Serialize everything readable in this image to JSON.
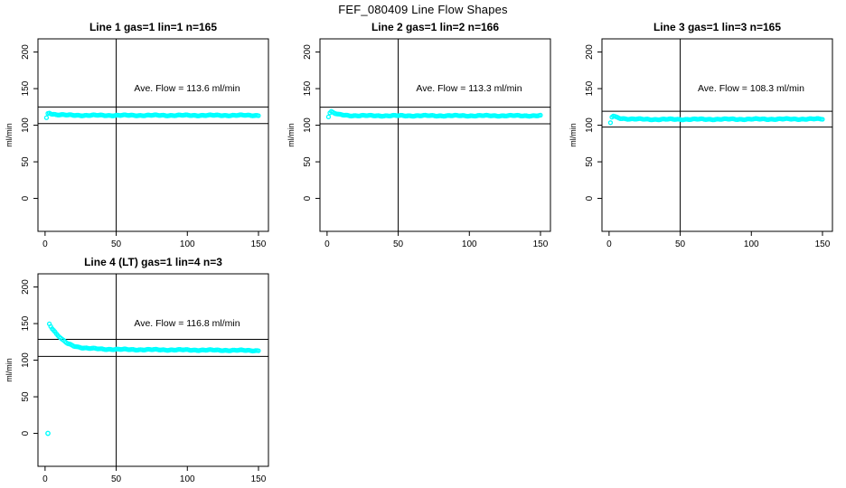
{
  "figure": {
    "title": "FEF_080409  Line Flow Shapes"
  },
  "chart_data": {
    "type": "scatter",
    "title": "FEF_080409  Line Flow Shapes",
    "ylabel": "ml/min",
    "xlabel": "",
    "x_ticks": [
      0,
      50,
      100,
      150
    ],
    "y_ticks": [
      0,
      50,
      100,
      150,
      200
    ],
    "xlim": [
      -5,
      157
    ],
    "ylim": [
      -45,
      218
    ],
    "grid": false,
    "legend": "none",
    "point_color": "#00FFFF",
    "line_color": "#000000",
    "vline_x": 50,
    "plots": [
      {
        "title": "Line 1 gas=1 lin=1 n=165",
        "annotation": "Ave. Flow =  113.6  ml/min",
        "ave_flow": 113.6,
        "n": 165,
        "ref_low": 102.2,
        "ref_high": 125.0,
        "x_start": 1,
        "x_end": 150,
        "anchors": [
          [
            1,
            110
          ],
          [
            2,
            116
          ],
          [
            3,
            117
          ],
          [
            5,
            115.5
          ],
          [
            8,
            114.5
          ],
          [
            15,
            113.8
          ],
          [
            30,
            113.5
          ],
          [
            150,
            113.5
          ]
        ],
        "extra_points": []
      },
      {
        "title": "Line 2 gas=1 lin=2 n=166",
        "annotation": "Ave. Flow =  113.3  ml/min",
        "ave_flow": 113.3,
        "n": 166,
        "ref_low": 102.0,
        "ref_high": 124.6,
        "x_start": 1,
        "x_end": 150,
        "anchors": [
          [
            1,
            112
          ],
          [
            2,
            117
          ],
          [
            3,
            118.5
          ],
          [
            5,
            116.5
          ],
          [
            8,
            114.5
          ],
          [
            15,
            113.3
          ],
          [
            30,
            113
          ],
          [
            150,
            113
          ]
        ],
        "extra_points": []
      },
      {
        "title": "Line 3 gas=1 lin=3 n=165",
        "annotation": "Ave. Flow =  108.3  ml/min",
        "ave_flow": 108.3,
        "n": 165,
        "ref_low": 97.5,
        "ref_high": 119.1,
        "x_start": 1,
        "x_end": 150,
        "anchors": [
          [
            1,
            103
          ],
          [
            2,
            111
          ],
          [
            3,
            112.5
          ],
          [
            5,
            111
          ],
          [
            8,
            109.5
          ],
          [
            15,
            108.5
          ],
          [
            30,
            108
          ],
          [
            150,
            108.5
          ]
        ],
        "extra_points": []
      },
      {
        "title": "Line 4 (LT) gas=1 lin=4 n=3",
        "annotation": "Ave. Flow =  116.8  ml/min",
        "ave_flow": 116.8,
        "n": 3,
        "ref_low": 105.1,
        "ref_high": 128.5,
        "x_start": 3,
        "x_end": 150,
        "anchors": [
          [
            3,
            150
          ],
          [
            5,
            143.5
          ],
          [
            8,
            136
          ],
          [
            12,
            128
          ],
          [
            16,
            122.5
          ],
          [
            20,
            119.5
          ],
          [
            25,
            117.5
          ],
          [
            30,
            116.3
          ],
          [
            40,
            115.2
          ],
          [
            60,
            114.5
          ],
          [
            100,
            114
          ],
          [
            150,
            113.2
          ]
        ],
        "extra_points": [
          [
            2,
            0
          ]
        ]
      }
    ]
  }
}
